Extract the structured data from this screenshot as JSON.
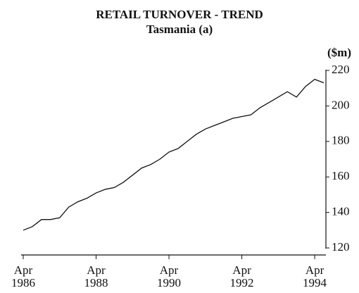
{
  "chart_data": {
    "type": "line",
    "title": "RETAIL TURNOVER - TREND",
    "subtitle": "Tasmania (a)",
    "y_label": "($m)",
    "x": [
      "1986-04",
      "1986-07",
      "1986-10",
      "1987-01",
      "1987-04",
      "1987-07",
      "1987-10",
      "1988-01",
      "1988-04",
      "1988-07",
      "1988-10",
      "1989-01",
      "1989-04",
      "1989-07",
      "1989-10",
      "1990-01",
      "1990-04",
      "1990-07",
      "1990-10",
      "1991-01",
      "1991-04",
      "1991-07",
      "1991-10",
      "1992-01",
      "1992-04",
      "1992-07",
      "1992-10",
      "1993-01",
      "1993-04",
      "1993-07",
      "1993-10",
      "1994-01",
      "1994-04",
      "1994-07"
    ],
    "series": [
      {
        "name": "Retail turnover",
        "color": "#111111",
        "values": [
          130,
          132,
          136,
          136,
          137,
          143,
          146,
          148,
          151,
          153,
          154,
          157,
          161,
          165,
          167,
          170,
          174,
          176,
          180,
          184,
          187,
          189,
          191,
          193,
          194,
          195,
          199,
          202,
          205,
          208,
          205,
          211,
          215,
          213
        ]
      }
    ],
    "xlim": [
      "1986-04",
      "1994-07"
    ],
    "xticks": [
      {
        "value": "1986-04",
        "label": "Apr 1986"
      },
      {
        "value": "1988-04",
        "label": "Apr 1988"
      },
      {
        "value": "1990-04",
        "label": "Apr 1990"
      },
      {
        "value": "1992-04",
        "label": "Apr 1992"
      },
      {
        "value": "1994-04",
        "label": "Apr 1994"
      }
    ],
    "ylim": [
      120,
      220
    ],
    "yticks": [
      120,
      140,
      160,
      180,
      200,
      220
    ],
    "grid": false
  }
}
